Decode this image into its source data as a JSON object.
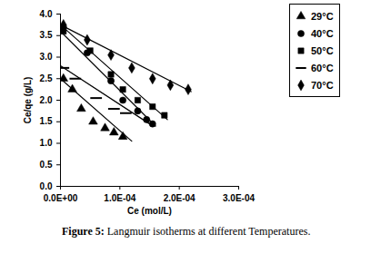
{
  "chart_data": {
    "type": "scatter",
    "caption": "Figure 5: Langmuir isotherms at different Temperatures.",
    "x_label": "Ce (mol/L)",
    "y_label": "Ce/qe (g/L)",
    "xlim": [
      0,
      0.0003
    ],
    "ylim": [
      0,
      4
    ],
    "xticks": [
      {
        "value": 0,
        "label": "0.0E+00"
      },
      {
        "value": 0.0001,
        "label": "1.0E-04"
      },
      {
        "value": 0.0002,
        "label": "2.0E-04"
      },
      {
        "value": 0.0003,
        "label": "3.0E-04"
      }
    ],
    "yticks": [
      {
        "value": 0,
        "label": "0.0"
      },
      {
        "value": 0.5,
        "label": "0.5"
      },
      {
        "value": 1,
        "label": "1.0"
      },
      {
        "value": 1.5,
        "label": "1.5"
      },
      {
        "value": 2,
        "label": "2.0"
      },
      {
        "value": 2.5,
        "label": "2.5"
      },
      {
        "value": 3,
        "label": "3.0"
      },
      {
        "value": 3.5,
        "label": "3.5"
      },
      {
        "value": 4,
        "label": "4.0"
      }
    ],
    "legend": "right",
    "series": [
      {
        "name": "29°C",
        "color": "#000000",
        "marker": "triangle",
        "x": [
          5e-06,
          2e-05,
          3.5e-05,
          5.5e-05,
          7.5e-05,
          9e-05,
          0.000105
        ],
        "values": [
          2.5,
          2.25,
          1.8,
          1.5,
          1.35,
          1.25,
          1.15
        ],
        "trendline": {
          "x": [
            0,
            0.00012
          ],
          "values": [
            2.5,
            1.05
          ]
        }
      },
      {
        "name": "40°C",
        "color": "#000000",
        "marker": "circle",
        "x": [
          5e-06,
          4.5e-05,
          8.5e-05,
          0.000105,
          0.00013,
          0.000145,
          0.000155
        ],
        "values": [
          3.7,
          3.1,
          2.45,
          2.0,
          1.75,
          1.55,
          1.45
        ],
        "trendline": {
          "x": [
            0,
            0.00016
          ],
          "values": [
            3.6,
            1.4
          ]
        }
      },
      {
        "name": "50°C",
        "color": "#000000",
        "marker": "square",
        "x": [
          5e-06,
          5e-05,
          8.5e-05,
          0.000105,
          0.00013,
          0.000155,
          0.000175
        ],
        "values": [
          3.6,
          3.15,
          2.6,
          2.25,
          2.0,
          1.85,
          1.65
        ],
        "trendline": {
          "x": [
            0,
            0.00018
          ],
          "values": [
            3.75,
            1.55
          ]
        }
      },
      {
        "name": "60°C",
        "color": "#000000",
        "marker": "dash",
        "x": [
          5e-06,
          2.5e-05,
          6e-05,
          9e-05,
          0.00011
        ],
        "values": [
          2.75,
          2.5,
          2.05,
          1.8,
          1.7
        ],
        "trendline": {
          "x": [
            0,
            0.00015
          ],
          "values": [
            2.8,
            1.45
          ]
        }
      },
      {
        "name": "70°C",
        "color": "#000000",
        "marker": "diamond",
        "x": [
          5e-06,
          4.5e-05,
          8.5e-05,
          0.00012,
          0.000155,
          0.000185,
          0.000215
        ],
        "values": [
          3.75,
          3.4,
          3.05,
          2.75,
          2.5,
          2.35,
          2.25
        ],
        "trendline": {
          "x": [
            0,
            0.00022
          ],
          "values": [
            3.75,
            2.2
          ]
        }
      }
    ]
  }
}
